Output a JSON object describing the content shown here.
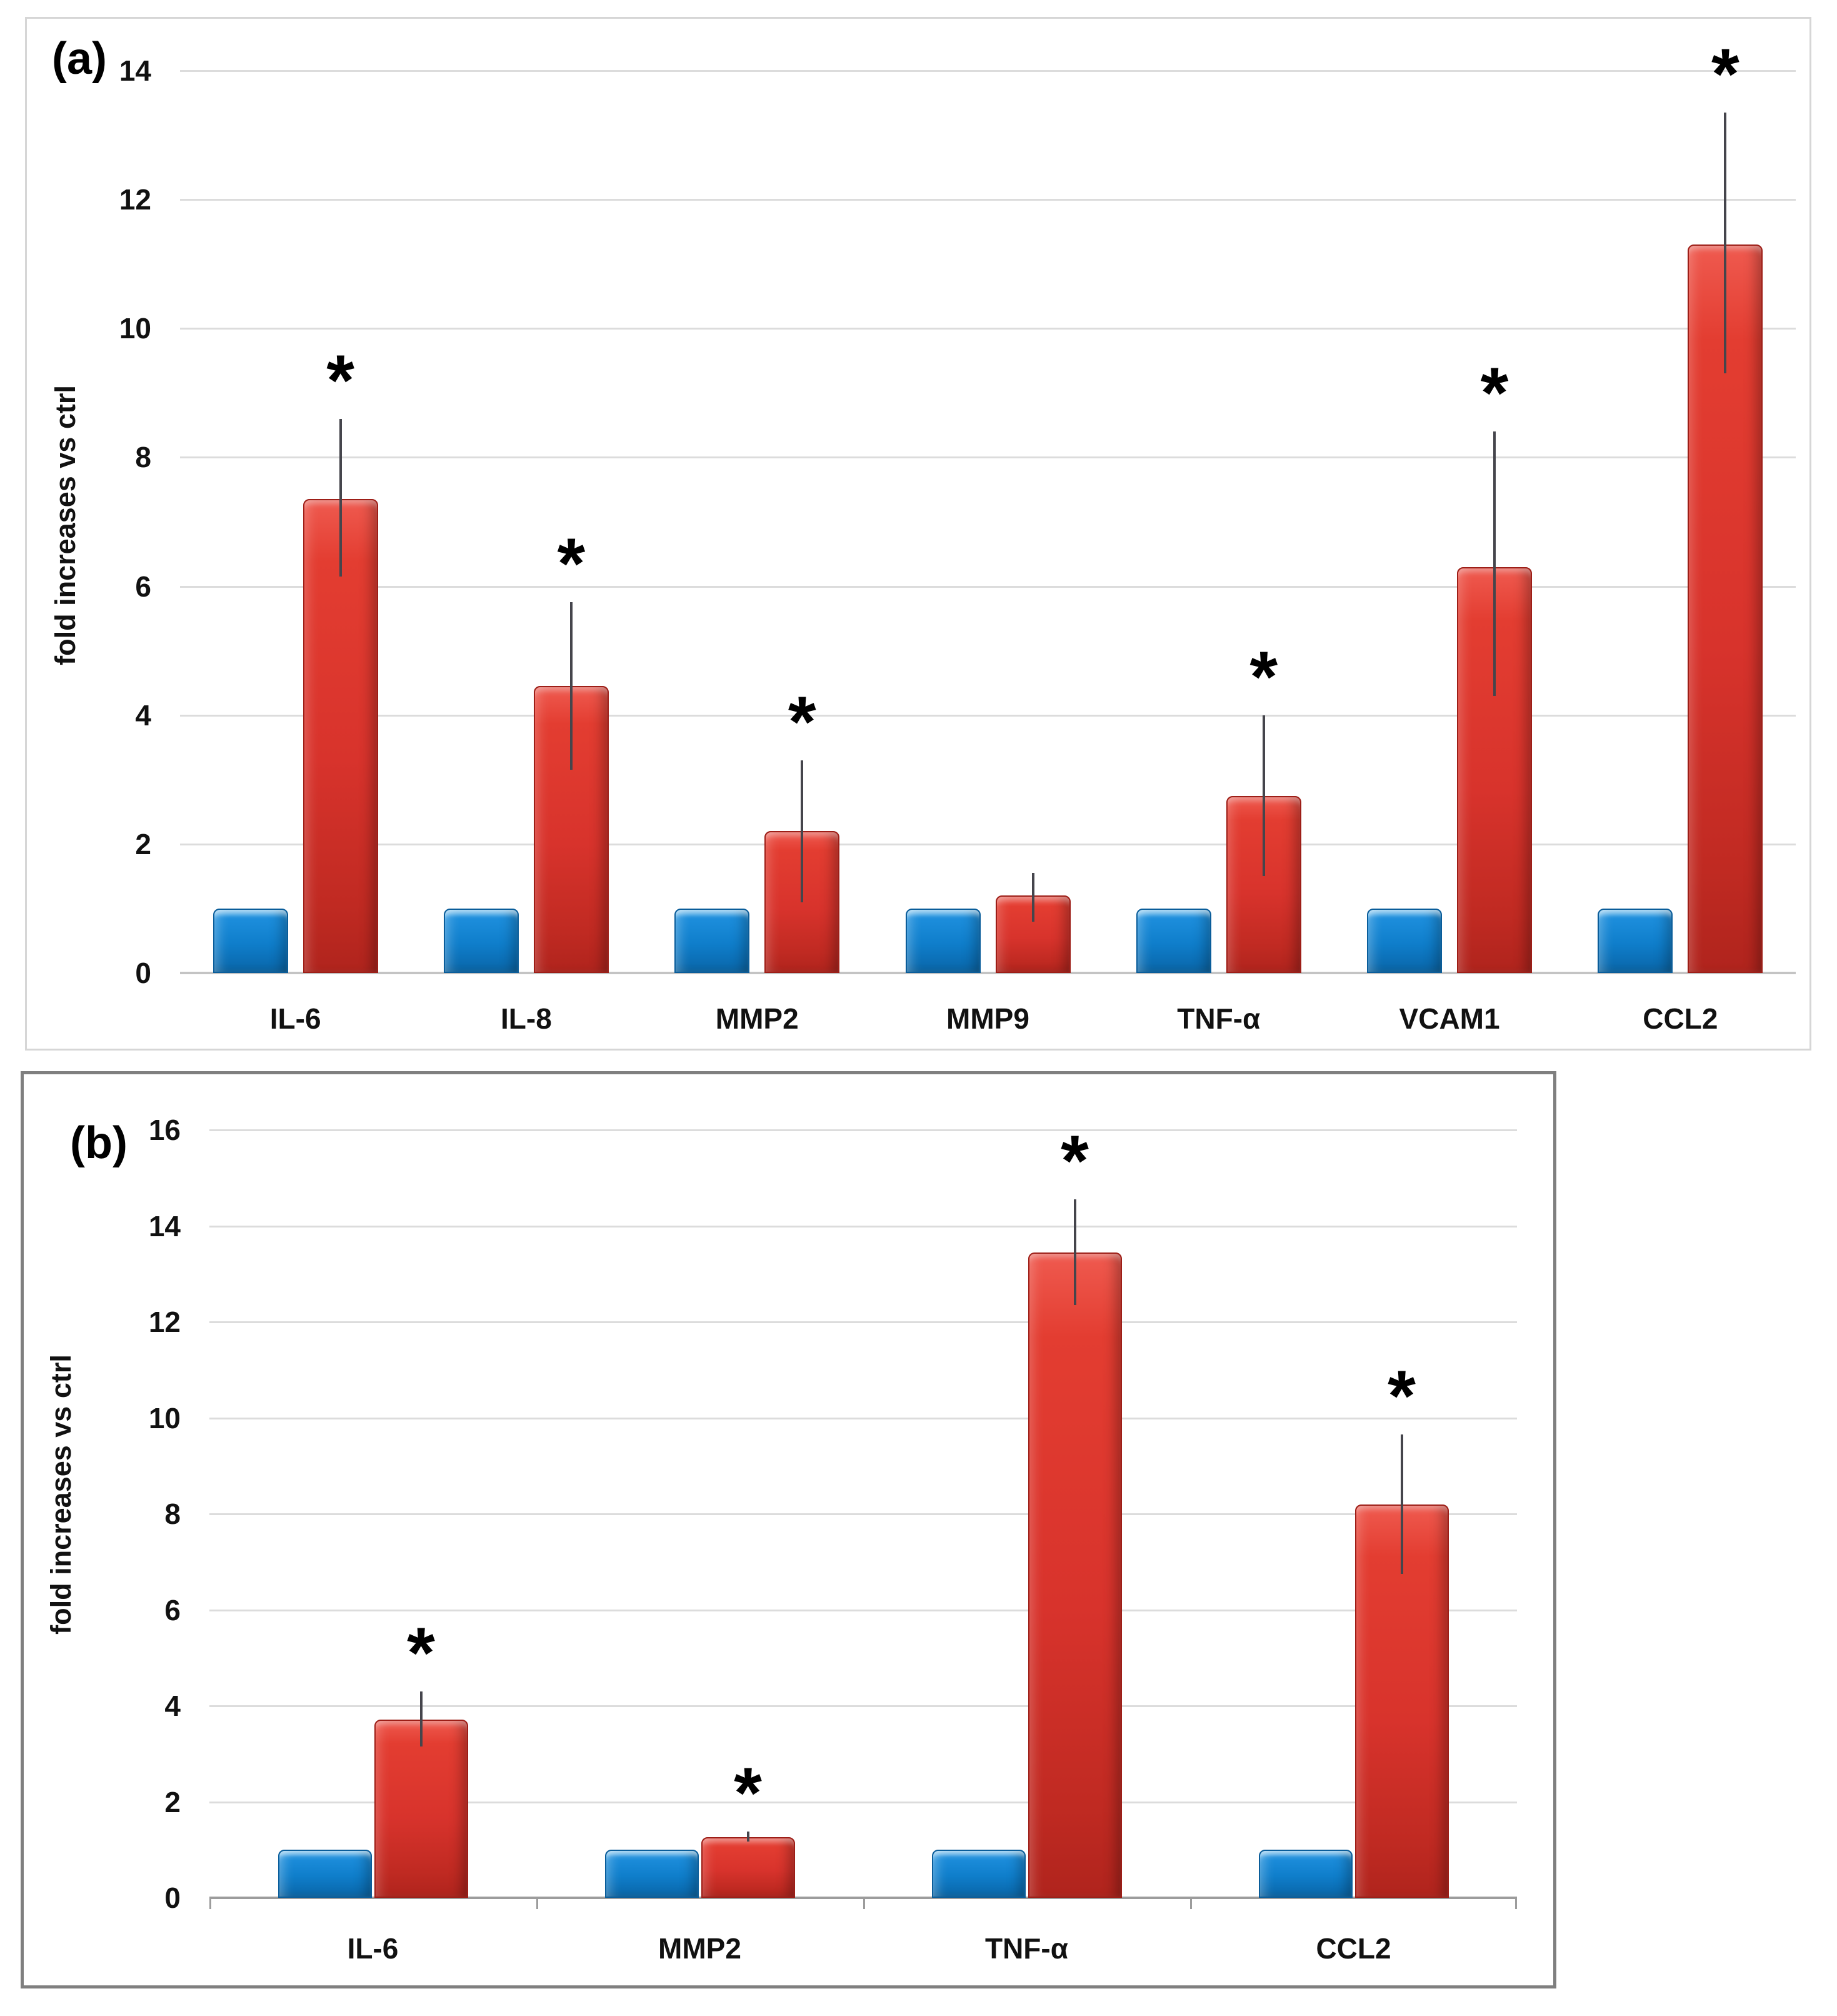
{
  "chart_data": [
    {
      "type": "bar",
      "panel_label": "(a)",
      "ylabel": "fold increases vs ctrl",
      "ylim": [
        0,
        14
      ],
      "yticks": [
        0,
        2,
        4,
        6,
        8,
        10,
        12,
        14
      ],
      "grid": "on",
      "legend": "none",
      "sig_marker": "*",
      "categories": [
        "IL-6",
        "IL-8",
        "MMP2",
        "MMP9",
        "TNF-α",
        "VCAM1",
        "CCL2"
      ],
      "series": [
        {
          "name": "blue",
          "color": "#1287d8",
          "values": [
            1.0,
            1.0,
            1.0,
            1.0,
            1.0,
            1.0,
            1.0
          ],
          "err_low": [
            0.96,
            0.96,
            0.96,
            0.96,
            0.96,
            0.96,
            0.96
          ],
          "err_high": [
            1.04,
            1.04,
            1.04,
            1.04,
            1.04,
            1.04,
            1.04
          ],
          "sig": [
            false,
            false,
            false,
            false,
            false,
            false,
            false
          ]
        },
        {
          "name": "red",
          "color": "#dd3328",
          "values": [
            7.35,
            4.45,
            2.2,
            1.2,
            2.75,
            6.3,
            11.3
          ],
          "err_low": [
            6.15,
            3.15,
            1.1,
            0.8,
            1.5,
            4.3,
            9.3
          ],
          "err_high": [
            8.6,
            5.75,
            3.3,
            1.55,
            4.0,
            8.4,
            13.35
          ],
          "sig": [
            true,
            true,
            true,
            false,
            true,
            true,
            true
          ]
        }
      ]
    },
    {
      "type": "bar",
      "panel_label": "(b)",
      "ylabel": "fold increases vs ctrl",
      "ylim": [
        0,
        16
      ],
      "yticks": [
        0,
        2,
        4,
        6,
        8,
        10,
        12,
        14,
        16
      ],
      "grid": "on",
      "legend": "none",
      "sig_marker": "*",
      "categories": [
        "IL-6",
        "MMP2",
        "TNF-α",
        "CCL2"
      ],
      "series": [
        {
          "name": "blue",
          "color": "#1287d8",
          "values": [
            1.0,
            1.0,
            1.0,
            1.0
          ],
          "err_low": [
            0.96,
            0.96,
            0.96,
            0.96
          ],
          "err_high": [
            1.04,
            1.04,
            1.04,
            1.04
          ],
          "sig": [
            false,
            false,
            false,
            false
          ]
        },
        {
          "name": "red",
          "color": "#dd3328",
          "values": [
            3.72,
            1.27,
            13.45,
            8.2
          ],
          "err_low": [
            3.15,
            1.17,
            12.35,
            6.75
          ],
          "err_high": [
            4.3,
            1.38,
            14.55,
            9.65
          ],
          "sig": [
            true,
            true,
            true,
            true
          ]
        }
      ]
    }
  ],
  "colors": {
    "blue_bar": "#1287d8",
    "red_bar": "#dd3328",
    "gridline": "#dcdcdc",
    "axis_a": "#c4c4c4",
    "axis_b": "#9c9c9c",
    "error_bar": "#45454c",
    "blue_err_cap": "#6f6151",
    "panel_a_border": "#d6d6d6",
    "panel_b_border": "#7f7f7f"
  }
}
